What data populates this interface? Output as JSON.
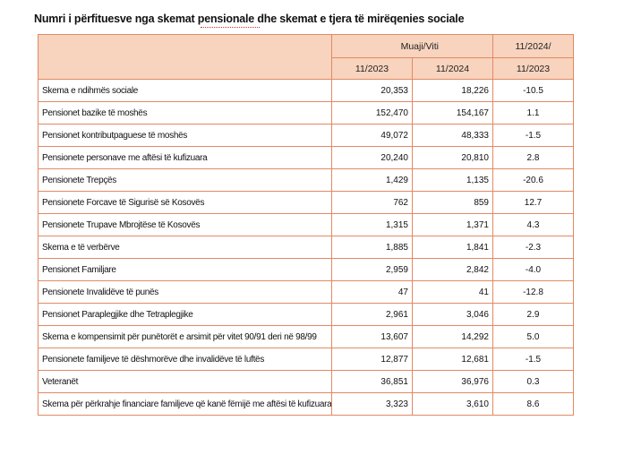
{
  "title": "Numri i përfituesve nga skemat pensionale dhe skemat e tjera të mirëqenies sociale",
  "accent_color": "#f8d3be",
  "border_color": "#e08a63",
  "table": {
    "header": {
      "group_label": "Muaji/Viti",
      "change_label_top": "11/2024/",
      "col1": "11/2023",
      "col2": "11/2024",
      "change_label_bottom": "11/2023"
    },
    "rows": [
      {
        "label": "Skema e ndihmës sociale",
        "v2023": "20,353",
        "v2024": "18,226",
        "change": "-10.5"
      },
      {
        "label": "Pensionet bazike të moshës",
        "v2023": "152,470",
        "v2024": "154,167",
        "change": "1.1"
      },
      {
        "label": "Pensionet kontributpaguese të moshës",
        "v2023": "49,072",
        "v2024": "48,333",
        "change": "-1.5"
      },
      {
        "label": "Pensionete personave me aftësi të kufizuara",
        "v2023": "20,240",
        "v2024": "20,810",
        "change": "2.8"
      },
      {
        "label": "Pensionete Trepçës",
        "v2023": "1,429",
        "v2024": "1,135",
        "change": "-20.6"
      },
      {
        "label": "Pensionete Forcave të Sigurisë së Kosovës",
        "v2023": "762",
        "v2024": "859",
        "change": "12.7"
      },
      {
        "label": "Pensionete Trupave Mbrojtëse të Kosovës",
        "v2023": "1,315",
        "v2024": "1,371",
        "change": "4.3"
      },
      {
        "label": "Skema e të verbërve",
        "v2023": "1,885",
        "v2024": "1,841",
        "change": "-2.3"
      },
      {
        "label": "Pensionet  Familjare",
        "v2023": "2,959",
        "v2024": "2,842",
        "change": "-4.0"
      },
      {
        "label": "Pensionete Invalidëve të punës",
        "v2023": "47",
        "v2024": "41",
        "change": "-12.8"
      },
      {
        "label": "Pensionet Paraplegjike dhe Tetraplegjike",
        "v2023": "2,961",
        "v2024": "3,046",
        "change": "2.9"
      },
      {
        "label": "Skema e kompensimit për punëtorët e arsimit për vitet  90/91 deri në 98/99",
        "v2023": "13,607",
        "v2024": "14,292",
        "change": "5.0"
      },
      {
        "label": "Pensionete familjeve të dëshmorëve dhe invalidëve të luftës",
        "v2023": "12,877",
        "v2024": "12,681",
        "change": "-1.5"
      },
      {
        "label": "Veteranët",
        "v2023": "36,851",
        "v2024": "36,976",
        "change": "0.3"
      },
      {
        "label": "Skema për përkrahje financiare familjeve që kanë fëmijë me aftësi të kufizuara",
        "v2023": "3,323",
        "v2024": "3,610",
        "change": "8.6"
      }
    ]
  }
}
